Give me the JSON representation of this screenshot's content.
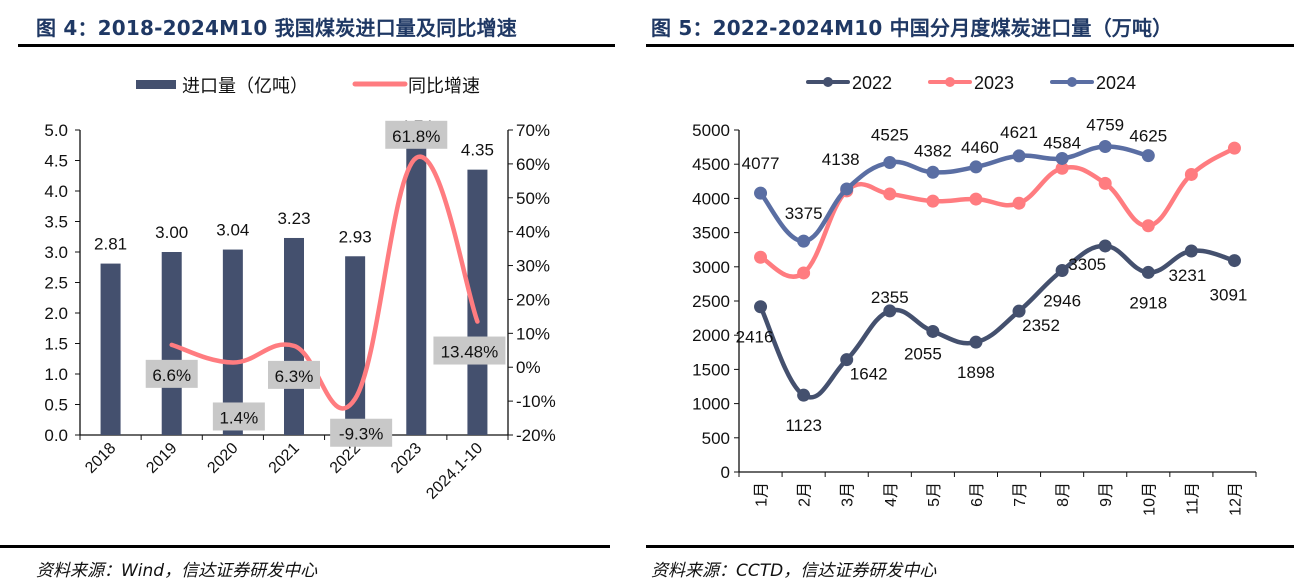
{
  "figure4": {
    "title": "图 4：2018-2024M10 我国煤炭进口量及同比增速",
    "source": "资料来源：Wind，信达证券研发中心"
  },
  "figure5": {
    "title": "图 5：2022-2024M10 中国分月度煤炭进口量（万吨）",
    "source": "资料来源：CCTD，信达证券研发中心"
  },
  "chart_data": [
    {
      "type": "bar",
      "title": "图 4：2018-2024M10 我国煤炭进口量及同比增速",
      "categories": [
        "2018",
        "2019",
        "2020",
        "2021",
        "2022",
        "2023",
        "2024.1-10"
      ],
      "series": [
        {
          "name": "进口量（亿吨）",
          "kind": "bar",
          "axis": "left",
          "color": "#44506e",
          "values": [
            2.81,
            3.0,
            3.04,
            3.23,
            2.93,
            4.74,
            4.35
          ],
          "labels": [
            "2.81",
            "3.00",
            "3.04",
            "3.23",
            "2.93",
            "4.74",
            "4.35"
          ]
        },
        {
          "name": "同比增速",
          "kind": "line",
          "axis": "right",
          "color": "#ff7c80",
          "values": [
            null,
            6.6,
            1.4,
            6.3,
            -9.3,
            61.8,
            13.48
          ],
          "labels": [
            null,
            "6.6%",
            "1.4%",
            "6.3%",
            "-9.3%",
            "61.8%",
            "13.48%"
          ]
        }
      ],
      "y_left": {
        "ylim": [
          0,
          5.0
        ],
        "ticks": [
          "0.0",
          "0.5",
          "1.0",
          "1.5",
          "2.0",
          "2.5",
          "3.0",
          "3.5",
          "4.0",
          "4.5",
          "5.0"
        ]
      },
      "y_right": {
        "ylim": [
          -20,
          70
        ],
        "ticks": [
          "-20%",
          "-10%",
          "0%",
          "10%",
          "20%",
          "30%",
          "40%",
          "50%",
          "60%",
          "70%"
        ]
      },
      "legend": [
        "进口量（亿吨）",
        "同比增速"
      ],
      "legend_position": "top",
      "grid": false,
      "data_label_bg": "#c8c8c8"
    },
    {
      "type": "line",
      "title": "图 5：2022-2024M10 中国分月度煤炭进口量（万吨）",
      "categories": [
        "1月",
        "2月",
        "3月",
        "4月",
        "5月",
        "6月",
        "7月",
        "8月",
        "9月",
        "10月",
        "11月",
        "12月"
      ],
      "series": [
        {
          "name": "2022",
          "color": "#44506e",
          "values": [
            2416,
            1123,
            1642,
            2355,
            2055,
            1898,
            2352,
            2946,
            3305,
            2918,
            3231,
            3091
          ],
          "labels": [
            "2416",
            "1123",
            "1642",
            "2355",
            "2055",
            "1898",
            "2352",
            "2946",
            "3305",
            "2918",
            "3231",
            "3091"
          ]
        },
        {
          "name": "2023",
          "color": "#ff7c80",
          "values": [
            3140,
            2910,
            4110,
            4065,
            3960,
            3990,
            3930,
            4440,
            4220,
            3600,
            4350,
            4735
          ],
          "labels": []
        },
        {
          "name": "2024",
          "color": "#5a6ea3",
          "values": [
            4077,
            3375,
            4138,
            4525,
            4382,
            4460,
            4621,
            4584,
            4759,
            4625
          ],
          "labels": [
            "4077",
            "3375",
            "4138",
            "4525",
            "4382",
            "4460",
            "4621",
            "4584",
            "4759",
            "4625"
          ]
        }
      ],
      "ylim": [
        0,
        5000
      ],
      "yticks": [
        "0",
        "500",
        "1000",
        "1500",
        "2000",
        "2500",
        "3000",
        "3500",
        "4000",
        "4500",
        "5000"
      ],
      "legend": [
        "2022",
        "2023",
        "2024"
      ],
      "legend_position": "top",
      "grid": false
    }
  ]
}
